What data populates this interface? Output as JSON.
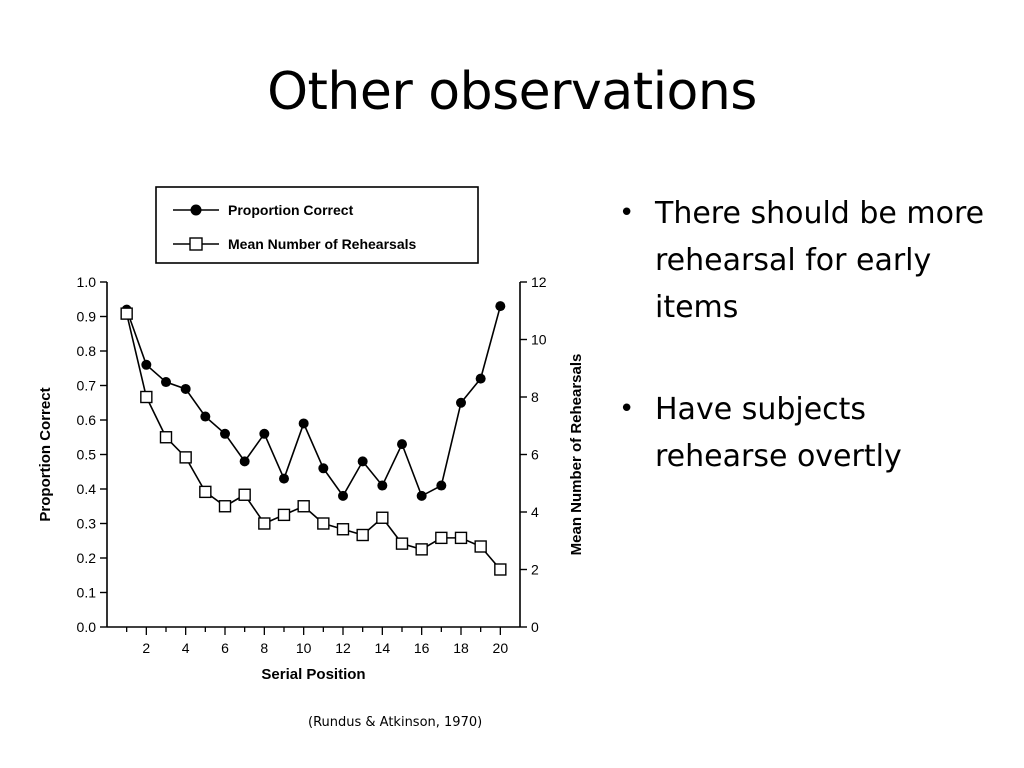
{
  "slide": {
    "title": "Other observations",
    "bullets": [
      "There should be more rehearsal for early items",
      "Have subjects rehearse overtly"
    ],
    "citation": "(Rundus & Atkinson, 1970)"
  },
  "chart_data": {
    "type": "line",
    "xlabel": "Serial Position",
    "ylabel_left": "Proportion Correct",
    "ylabel_right": "Mean Number of Rehearsals",
    "xlim": [
      0,
      21
    ],
    "ylim_left": [
      0,
      1.0
    ],
    "ylim_right": [
      0,
      12
    ],
    "x_ticks": [
      2,
      4,
      6,
      8,
      10,
      12,
      14,
      16,
      18,
      20
    ],
    "y_left_ticks": [
      "0.0",
      "0.1",
      "0.2",
      "0.3",
      "0.4",
      "0.5",
      "0.6",
      "0.7",
      "0.8",
      "0.9",
      "1.0"
    ],
    "y_right_ticks": [
      "0",
      "2",
      "4",
      "6",
      "8",
      "10",
      "12"
    ],
    "x": [
      1,
      2,
      3,
      4,
      5,
      6,
      7,
      8,
      9,
      10,
      11,
      12,
      13,
      14,
      15,
      16,
      17,
      18,
      19,
      20
    ],
    "series": [
      {
        "name": "Proportion Correct",
        "axis": "left",
        "marker": "filled-circle",
        "values": [
          0.92,
          0.76,
          0.71,
          0.69,
          0.61,
          0.56,
          0.48,
          0.56,
          0.43,
          0.59,
          0.46,
          0.38,
          0.48,
          0.41,
          0.53,
          0.38,
          0.41,
          0.65,
          0.72,
          0.93
        ]
      },
      {
        "name": "Mean Number of Rehearsals",
        "axis": "right",
        "marker": "open-square",
        "values": [
          10.9,
          8.0,
          6.6,
          5.9,
          4.7,
          4.2,
          4.6,
          3.6,
          3.9,
          4.2,
          3.6,
          3.4,
          3.2,
          3.8,
          2.9,
          2.7,
          3.1,
          3.1,
          2.8,
          2.0
        ]
      }
    ],
    "legend": "top",
    "grid": false,
    "colors": {
      "line": "#000000",
      "background": "#ffffff"
    }
  }
}
